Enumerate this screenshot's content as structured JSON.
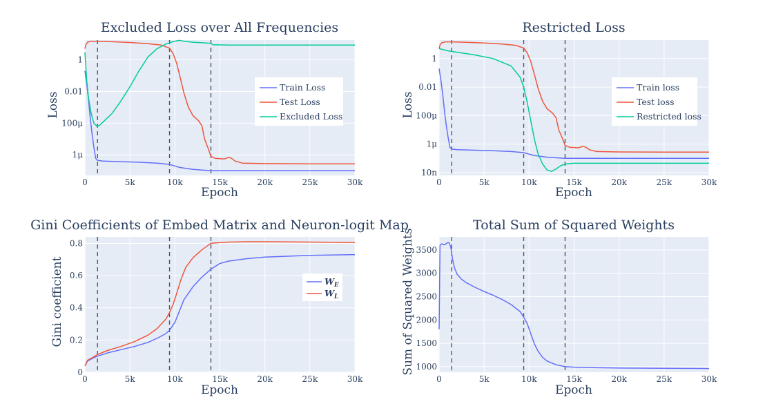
{
  "chart_data": [
    {
      "type": "line",
      "title": "Excluded Loss over All Frequencies",
      "xlabel": "Epoch",
      "ylabel": "Loss",
      "log_y": true,
      "xlim": [
        0,
        30000
      ],
      "ylim_log10": [
        -7.3,
        1.25
      ],
      "x_ticks": [
        0,
        5000,
        10000,
        15000,
        20000,
        25000,
        30000
      ],
      "x_tick_labels": [
        "0",
        "5k",
        "10k",
        "15k",
        "20k",
        "25k",
        "30k"
      ],
      "y_ticks_log10": [
        0,
        -2,
        -4,
        -6
      ],
      "y_tick_labels": [
        "1",
        "0.01",
        "100μ",
        "1μ"
      ],
      "vlines": [
        1400,
        9400,
        14000
      ],
      "legend_position": "top-right (inside)",
      "series": [
        {
          "name": "Train Loss",
          "color": "#636efa",
          "x": [
            0,
            200,
            400,
            600,
            800,
            1000,
            1200,
            1400,
            2000,
            4000,
            6000,
            8000,
            9400,
            10500,
            12000,
            14000,
            17000,
            20000,
            25000,
            30000
          ],
          "y": [
            0.2,
            0.03,
            0.003,
            0.0002,
            2e-05,
            3e-06,
            6e-07,
            4.5e-07,
            4e-07,
            3.7e-07,
            3.4e-07,
            3e-07,
            2.5e-07,
            1.6e-07,
            1.2e-07,
            1e-07,
            1e-07,
            1e-07,
            1e-07,
            1e-07
          ]
        },
        {
          "name": "Test Loss",
          "color": "#ef553b",
          "x": [
            0,
            100,
            300,
            700,
            1400,
            3000,
            5000,
            7000,
            8500,
            9400,
            9800,
            10200,
            10600,
            11000,
            11500,
            12000,
            12600,
            13000,
            13300,
            13700,
            14000,
            14500,
            15500,
            16000,
            16300,
            16700,
            17500,
            20000,
            25000,
            30000
          ],
          "y": [
            5,
            9,
            13,
            15,
            15,
            14,
            12.5,
            10.5,
            8.5,
            5.5,
            2.5,
            0.6,
            0.07,
            0.008,
            0.001,
            0.0003,
            0.00015,
            7e-05,
            1e-05,
            2.5e-06,
            8e-07,
            6e-07,
            5.5e-07,
            7e-07,
            6e-07,
            4e-07,
            3e-07,
            2.8e-07,
            2.7e-07,
            2.7e-07
          ]
        },
        {
          "name": "Excluded Loss",
          "color": "#00cc96",
          "x": [
            0,
            200,
            400,
            700,
            1000,
            1400,
            1700,
            2200,
            3000,
            4000,
            5000,
            6000,
            7000,
            8000,
            9000,
            9400,
            10000,
            10500,
            11000,
            12000,
            13000,
            14000,
            14200,
            16000,
            20000,
            25000,
            30000
          ],
          "y": [
            3,
            0.05,
            0.004,
            0.0004,
            0.0001,
            6e-05,
            8e-05,
            0.00015,
            0.0004,
            0.0025,
            0.02,
            0.2,
            1.5,
            5,
            10,
            12,
            15,
            17,
            15,
            13,
            12,
            11,
            9,
            8.5,
            8.5,
            8.5,
            8.5
          ]
        }
      ]
    },
    {
      "type": "line",
      "title": "Restricted Loss",
      "xlabel": "Epoch",
      "ylabel": "Loss",
      "log_y": true,
      "xlim": [
        0,
        30000
      ],
      "ylim_log10": [
        -8.2,
        1.3
      ],
      "x_ticks": [
        0,
        5000,
        10000,
        15000,
        20000,
        25000,
        30000
      ],
      "x_tick_labels": [
        "0",
        "5k",
        "10k",
        "15k",
        "20k",
        "25k",
        "30k"
      ],
      "y_ticks_log10": [
        0,
        -2,
        -4,
        -6,
        -8
      ],
      "y_tick_labels": [
        "1",
        "0.01",
        "100μ",
        "1μ",
        "10n"
      ],
      "vlines": [
        1400,
        9400,
        14000
      ],
      "legend_position": "top-right (inside)",
      "series": [
        {
          "name": "Train loss",
          "color": "#636efa",
          "x": [
            0,
            200,
            400,
            600,
            800,
            1000,
            1200,
            1400,
            2000,
            4000,
            6000,
            8000,
            9400,
            10500,
            12000,
            14000,
            17000,
            20000,
            25000,
            30000
          ],
          "y": [
            0.2,
            0.03,
            0.003,
            0.0002,
            2e-05,
            3e-06,
            6e-07,
            4.5e-07,
            4e-07,
            3.7e-07,
            3.4e-07,
            3e-07,
            2.5e-07,
            1.6e-07,
            1.2e-07,
            1e-07,
            1e-07,
            1e-07,
            1e-07,
            1e-07
          ]
        },
        {
          "name": "Test loss",
          "color": "#ef553b",
          "x": [
            0,
            100,
            300,
            700,
            1400,
            3000,
            5000,
            7000,
            8500,
            9400,
            9800,
            10200,
            10600,
            11000,
            11500,
            12000,
            12600,
            13000,
            13300,
            13700,
            14000,
            14500,
            15500,
            16000,
            16300,
            16700,
            17500,
            20000,
            25000,
            30000
          ],
          "y": [
            5,
            9,
            13,
            15,
            15,
            14,
            12.5,
            10.5,
            8.5,
            5.5,
            2.5,
            0.6,
            0.07,
            0.008,
            0.001,
            0.0003,
            0.00015,
            7e-05,
            1e-05,
            2.5e-06,
            8e-07,
            6e-07,
            5.5e-07,
            7e-07,
            6e-07,
            4e-07,
            3e-07,
            2.8e-07,
            2.7e-07,
            2.7e-07
          ]
        },
        {
          "name": "Restricted loss",
          "color": "#00cc96",
          "x": [
            0,
            1000,
            2000,
            4000,
            6000,
            8000,
            9000,
            9400,
            9800,
            10200,
            10600,
            11000,
            11500,
            12000,
            12500,
            13000,
            13500,
            14000,
            15000,
            20000,
            25000,
            30000
          ],
          "y": [
            5,
            3.5,
            2.8,
            1.8,
            1.0,
            0.3,
            0.05,
            0.01,
            0.0008,
            4e-05,
            2e-06,
            2e-07,
            4e-08,
            1.5e-08,
            1.2e-08,
            1.8e-08,
            3e-08,
            4e-08,
            4.5e-08,
            4.5e-08,
            4.5e-08,
            4.5e-08
          ]
        }
      ]
    },
    {
      "type": "line",
      "title": "Gini Coefficients of Embed Matrix and Neuron-logit Map",
      "xlabel": "Epoch",
      "ylabel": "Gini coefficient",
      "xlim": [
        0,
        30000
      ],
      "ylim": [
        0,
        0.84
      ],
      "x_ticks": [
        0,
        5000,
        10000,
        15000,
        20000,
        25000,
        30000
      ],
      "x_tick_labels": [
        "0",
        "5k",
        "10k",
        "15k",
        "20k",
        "25k",
        "30k"
      ],
      "y_ticks": [
        0,
        0.2,
        0.4,
        0.6,
        0.8
      ],
      "y_tick_labels": [
        "0",
        "0.2",
        "0.4",
        "0.6",
        "0.8"
      ],
      "vlines": [
        1400,
        9400,
        14000
      ],
      "legend_position": "right (inside)",
      "series": [
        {
          "name": "W",
          "subscript": "E",
          "color": "#636efa",
          "x": [
            0,
            300,
            800,
            1400,
            2500,
            4000,
            5500,
            7000,
            8000,
            9000,
            9400,
            10000,
            10500,
            11000,
            12000,
            13000,
            14000,
            15000,
            16000,
            18000,
            20000,
            25000,
            30000
          ],
          "y": [
            0.04,
            0.07,
            0.085,
            0.1,
            0.12,
            0.14,
            0.16,
            0.185,
            0.21,
            0.24,
            0.26,
            0.31,
            0.38,
            0.45,
            0.53,
            0.59,
            0.64,
            0.675,
            0.69,
            0.705,
            0.715,
            0.725,
            0.73
          ]
        },
        {
          "name": "W",
          "subscript": "L",
          "color": "#ef553b",
          "x": [
            0,
            300,
            800,
            1400,
            2500,
            4000,
            5500,
            7000,
            8000,
            9000,
            9400,
            9800,
            10200,
            10700,
            11200,
            12000,
            13000,
            14000,
            15000,
            16000,
            18000,
            20000,
            25000,
            30000
          ],
          "y": [
            0.04,
            0.075,
            0.09,
            0.11,
            0.135,
            0.16,
            0.19,
            0.23,
            0.27,
            0.33,
            0.37,
            0.42,
            0.49,
            0.58,
            0.65,
            0.71,
            0.76,
            0.8,
            0.805,
            0.808,
            0.81,
            0.81,
            0.808,
            0.805
          ]
        }
      ]
    },
    {
      "type": "line",
      "title": "Total Sum of Squared Weights",
      "xlabel": "Epoch",
      "ylabel": "Sum of Squared Weights",
      "xlim": [
        0,
        30000
      ],
      "ylim": [
        880,
        3780
      ],
      "x_ticks": [
        0,
        5000,
        10000,
        15000,
        20000,
        25000,
        30000
      ],
      "x_tick_labels": [
        "0",
        "5k",
        "10k",
        "15k",
        "20k",
        "25k",
        "30k"
      ],
      "y_ticks": [
        1000,
        1500,
        2000,
        2500,
        3000,
        3500
      ],
      "y_tick_labels": [
        "1000",
        "1500",
        "2000",
        "2500",
        "3000",
        "3500"
      ],
      "vlines": [
        1400,
        9400,
        14000
      ],
      "series": [
        {
          "name": "",
          "color": "#636efa",
          "x": [
            0,
            100,
            300,
            600,
            900,
            1100,
            1300,
            1500,
            1700,
            2000,
            2500,
            3000,
            4000,
            5000,
            6000,
            7000,
            8000,
            9000,
            9400,
            9800,
            10200,
            10600,
            11000,
            11500,
            12000,
            13000,
            14000,
            15000,
            17000,
            20000,
            25000,
            30000
          ],
          "y": [
            1800,
            3600,
            3630,
            3610,
            3650,
            3660,
            3560,
            3300,
            3120,
            2980,
            2870,
            2800,
            2700,
            2610,
            2530,
            2440,
            2330,
            2180,
            2060,
            1920,
            1700,
            1480,
            1330,
            1200,
            1120,
            1040,
            1000,
            990,
            980,
            970,
            965,
            960
          ]
        }
      ]
    }
  ]
}
